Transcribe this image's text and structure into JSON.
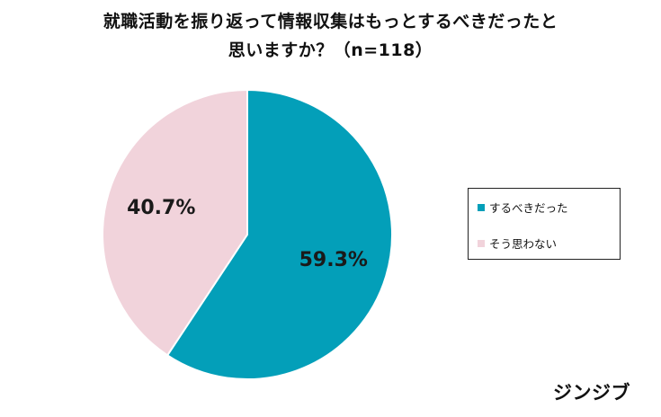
{
  "title": {
    "line1": "就職活動を振り返って情報収集はもっとするべきだったと",
    "line2": "思いますか？（n=118）"
  },
  "chart_data": {
    "type": "pie",
    "title": "就職活動を振り返って情報収集はもっとするべきだったと思いますか？（n=118）",
    "n": 118,
    "slices": [
      {
        "label": "するべきだった",
        "value": 59.3,
        "display": "59.3%",
        "color": "#039fb9"
      },
      {
        "label": "そう思わない",
        "value": 40.7,
        "display": "40.7%",
        "color": "#f1d3db"
      }
    ],
    "start_angle": "12 o'clock",
    "direction": "clockwise",
    "legend_placement": "right"
  },
  "brand": "ジンジブ"
}
